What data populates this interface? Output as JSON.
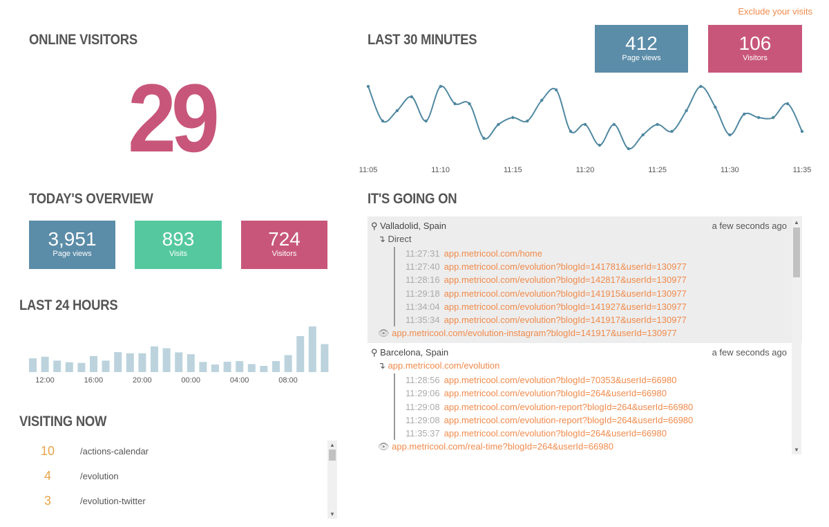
{
  "header": {
    "exclude_link": "Exclude your visits"
  },
  "online": {
    "title": "ONLINE VISITORS",
    "count": "29"
  },
  "last30": {
    "title": "LAST 30 MINUTES",
    "page_views": {
      "value": "412",
      "label": "Page views"
    },
    "visitors": {
      "value": "106",
      "label": "Visitors"
    }
  },
  "overview": {
    "title": "TODAY'S OVERVIEW",
    "stats": [
      {
        "value": "3,951",
        "label": "Page views"
      },
      {
        "value": "893",
        "label": "Visits"
      },
      {
        "value": "724",
        "label": "Visitors"
      }
    ]
  },
  "last24": {
    "title": "LAST 24 HOURS"
  },
  "visiting": {
    "title": "VISITING NOW",
    "rows": [
      {
        "count": "10",
        "path": "/actions-calendar"
      },
      {
        "count": "4",
        "path": "/evolution"
      },
      {
        "count": "3",
        "path": "/evolution-twitter"
      }
    ]
  },
  "going_on": {
    "title": "IT'S GOING ON",
    "visits": [
      {
        "location": "Valladolid, Spain",
        "ago": "a few seconds ago",
        "referrer": "Direct",
        "referrer_link": false,
        "pages": [
          {
            "time": "11:27:31",
            "url": "app.metricool.com/home"
          },
          {
            "time": "11:27:40",
            "url": "app.metricool.com/evolution?blogId=141781&userId=130977"
          },
          {
            "time": "11:28:16",
            "url": "app.metricool.com/evolution?blogId=142817&userId=130977"
          },
          {
            "time": "11:29:18",
            "url": "app.metricool.com/evolution?blogId=141915&userId=130977"
          },
          {
            "time": "11:34:04",
            "url": "app.metricool.com/evolution?blogId=141927&userId=130977"
          },
          {
            "time": "11:35:34",
            "url": "app.metricool.com/evolution?blogId=141917&userId=130977"
          }
        ],
        "current": "app.metricool.com/evolution-instagram?blogId=141917&userId=130977"
      },
      {
        "location": "Barcelona, Spain",
        "ago": "a few seconds ago",
        "referrer": "app.metricool.com/evolution",
        "referrer_link": true,
        "pages": [
          {
            "time": "11:28:56",
            "url": "app.metricool.com/evolution?blogId=70353&userId=66980"
          },
          {
            "time": "11:29:06",
            "url": "app.metricool.com/evolution?blogId=264&userId=66980"
          },
          {
            "time": "11:29:08",
            "url": "app.metricool.com/evolution-report?blogId=264&userId=66980"
          },
          {
            "time": "11:29:08",
            "url": "app.metricool.com/evolution-report?blogId=264&userId=66980"
          },
          {
            "time": "11:35:37",
            "url": "app.metricool.com/evolution?blogId=264&userId=66980"
          }
        ],
        "current": "app.metricool.com/real-time?blogId=264&userId=66980"
      }
    ]
  },
  "colors": {
    "accent": "#f08a4b",
    "blue": "#5b8ca8",
    "green": "#55c8a0",
    "pink": "#c8567b",
    "bar": "#bcd3dd",
    "line": "#4f87a0"
  },
  "chart_data": [
    {
      "type": "line",
      "title": "LAST 30 MINUTES",
      "x_ticks": [
        "11:05",
        "11:10",
        "11:15",
        "11:20",
        "11:25",
        "11:30",
        "11:35"
      ],
      "values": [
        19,
        9,
        12,
        16,
        9,
        19,
        14,
        14,
        4,
        8,
        10,
        9,
        15,
        18,
        6,
        8,
        2,
        8,
        1,
        5,
        8,
        6,
        12,
        19,
        13,
        5,
        11,
        10,
        10,
        14,
        6
      ],
      "ylim": [
        0,
        20
      ]
    },
    {
      "type": "bar",
      "title": "LAST 24 HOURS",
      "x_ticks": [
        "12:00",
        "16:00",
        "20:00",
        "00:00",
        "04:00",
        "08:00"
      ],
      "values": [
        60,
        67,
        50,
        43,
        40,
        70,
        50,
        87,
        82,
        82,
        112,
        104,
        86,
        78,
        44,
        33,
        45,
        48,
        35,
        27,
        48,
        74,
        157,
        199,
        122
      ]
    }
  ]
}
